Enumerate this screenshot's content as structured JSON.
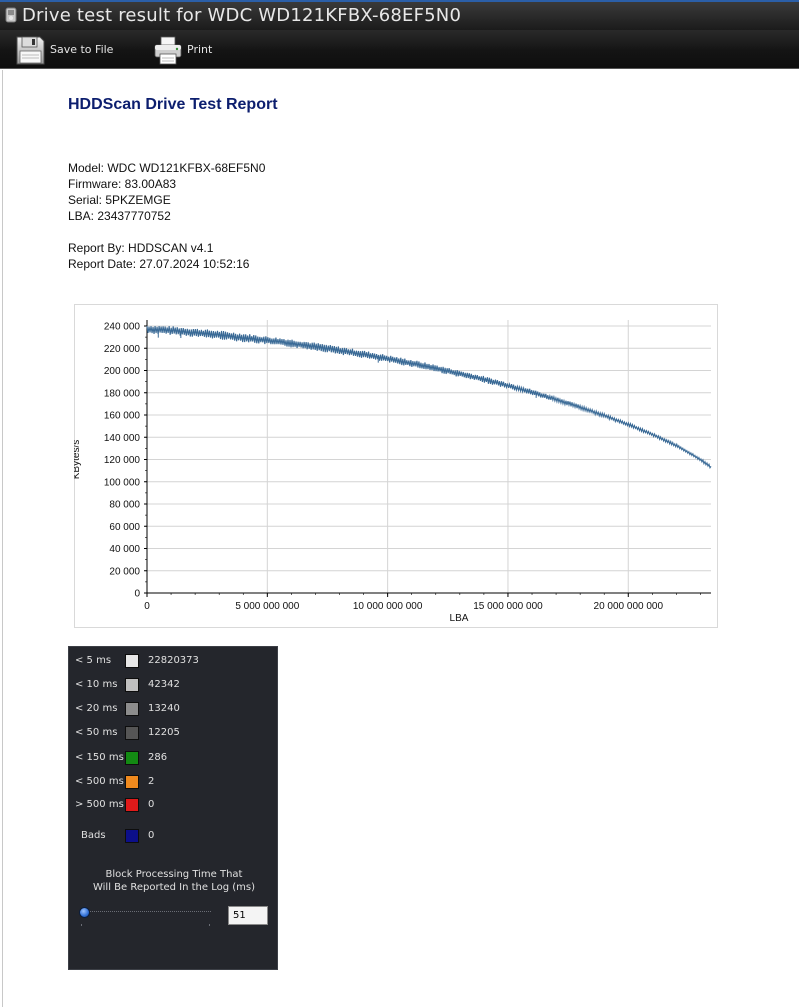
{
  "window": {
    "title": "Drive test result for WDC WD121KFBX-68EF5N0"
  },
  "toolbar": {
    "save_label": "Save to File",
    "save_icon": "floppy-disk-icon",
    "print_label": "Print",
    "print_icon": "printer-icon"
  },
  "report": {
    "title": "HDDScan Drive Test Report",
    "model": "Model: WDC WD121KFBX-68EF5N0",
    "firmware": "Firmware: 83.00A83",
    "serial": "Serial: 5PKZEMGE",
    "lba": "LBA: 23437770752",
    "report_by": "Report By: HDDSCAN v4.1",
    "report_date": "Report Date: 27.07.2024 10:52:16"
  },
  "chart_data": {
    "type": "line",
    "title": "",
    "xlabel": "LBA",
    "ylabel": "KBytes/s",
    "xlim": [
      0,
      23437770752
    ],
    "ylim": [
      0,
      240000
    ],
    "x_ticks": [
      0,
      5000000000,
      10000000000,
      15000000000,
      20000000000
    ],
    "x_tick_labels": [
      "0",
      "5 000 000 000",
      "10 000 000 000",
      "15 000 000 000",
      "20 000 000 000"
    ],
    "y_ticks": [
      0,
      20000,
      40000,
      60000,
      80000,
      100000,
      120000,
      140000,
      160000,
      180000,
      200000,
      220000,
      240000
    ],
    "y_tick_labels": [
      "0",
      "20 000",
      "40 000",
      "60 000",
      "80 000",
      "100 000",
      "120 000",
      "140 000",
      "160 000",
      "180 000",
      "200 000",
      "220 000",
      "240 000"
    ],
    "grid": true,
    "series": [
      {
        "color": "#3a6a96",
        "x": [
          0,
          1000000000,
          2000000000,
          3000000000,
          4000000000,
          5000000000,
          6000000000,
          7000000000,
          8000000000,
          9000000000,
          10000000000,
          11000000000,
          12000000000,
          13000000000,
          14000000000,
          15000000000,
          16000000000,
          17000000000,
          18000000000,
          19000000000,
          20000000000,
          21000000000,
          22000000000,
          23000000000,
          23437770752
        ],
        "y": [
          237000,
          236000,
          234000,
          232000,
          229500,
          227000,
          224500,
          221500,
          218000,
          214500,
          210500,
          206500,
          202000,
          197000,
          192000,
          186500,
          180500,
          174000,
          167000,
          159500,
          151500,
          142500,
          132500,
          120000,
          113000
        ],
        "spread": [
          4000,
          4000,
          4000,
          4000,
          4000,
          3800,
          3800,
          3600,
          3600,
          3500,
          3400,
          3300,
          3200,
          3100,
          3000,
          2800,
          2600,
          2400,
          2000,
          1800,
          1600,
          1400,
          1400,
          1400,
          1400
        ]
      }
    ]
  },
  "latency": {
    "items": [
      {
        "label": "< 5 ms",
        "count": "22820373",
        "color": "#e6e6e6"
      },
      {
        "label": "< 10 ms",
        "count": "42342",
        "color": "#c0c0c0"
      },
      {
        "label": "< 20 ms",
        "count": "13240",
        "color": "#8c8c8c"
      },
      {
        "label": "< 50 ms",
        "count": "12205",
        "color": "#555555"
      },
      {
        "label": "< 150 ms",
        "count": "286",
        "color": "#138a13"
      },
      {
        "label": "< 500 ms",
        "count": "2",
        "color": "#f08a1e"
      },
      {
        "label": "> 500 ms",
        "count": "0",
        "color": "#e01a1a"
      }
    ],
    "bads": {
      "label": "Bads",
      "count": "0",
      "color": "#0c0f8a"
    },
    "block_caption_line1": "Block Processing Time That",
    "block_caption_line2": "Will Be Reported In the Log (ms)",
    "threshold_value": "51",
    "slider_level": 0.0
  }
}
